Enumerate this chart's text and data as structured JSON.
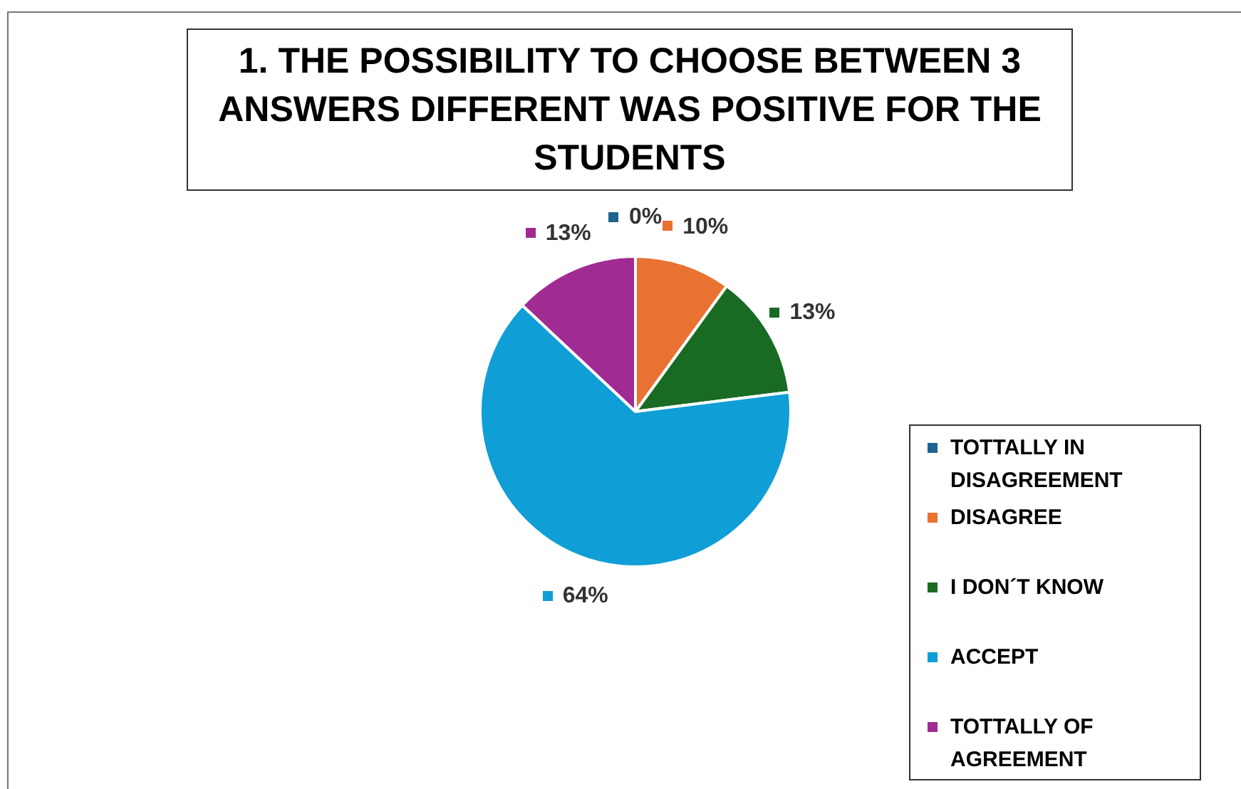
{
  "chart_data": {
    "type": "pie",
    "title": "1. THE POSSIBILITY TO CHOOSE BETWEEN 3 ANSWERS DIFFERENT WAS POSITIVE FOR THE STUDENTS",
    "categories": [
      "TOTTALLY IN DISAGREEMENT",
      "DISAGREE",
      "I DON´T KNOW",
      "ACCEPT",
      "TOTTALLY OF AGREEMENT"
    ],
    "values": [
      0,
      10,
      13,
      64,
      13
    ],
    "value_labels": [
      "0%",
      "10%",
      "13%",
      "64%",
      "13%"
    ],
    "colors": [
      "#1f6391",
      "#e97132",
      "#196b24",
      "#0f9ed5",
      "#a02b93"
    ],
    "legend": "right"
  }
}
